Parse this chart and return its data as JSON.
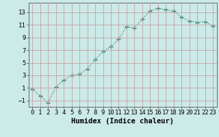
{
  "x": [
    0,
    1,
    2,
    3,
    4,
    5,
    6,
    7,
    8,
    9,
    10,
    11,
    12,
    13,
    14,
    15,
    16,
    17,
    18,
    19,
    20,
    21,
    22,
    23
  ],
  "y": [
    0.8,
    -0.3,
    -1.3,
    1.2,
    2.2,
    3.0,
    3.2,
    4.0,
    5.5,
    6.8,
    7.5,
    8.7,
    10.7,
    10.5,
    11.9,
    13.2,
    13.6,
    13.4,
    13.2,
    12.2,
    11.6,
    11.4,
    11.5,
    10.8
  ],
  "line_color": "#2e7d6e",
  "marker": "+",
  "marker_size": 4,
  "bg_color": "#cceae7",
  "grid_color": "#c4a0a0",
  "xlabel": "Humidex (Indice chaleur)",
  "ylim": [
    -2,
    14.5
  ],
  "xlim": [
    -0.5,
    23.5
  ],
  "yticks": [
    -1,
    1,
    3,
    5,
    7,
    9,
    11,
    13
  ],
  "xticks": [
    0,
    1,
    2,
    3,
    4,
    5,
    6,
    7,
    8,
    9,
    10,
    11,
    12,
    13,
    14,
    15,
    16,
    17,
    18,
    19,
    20,
    21,
    22,
    23
  ],
  "tick_labelsize": 6.5,
  "xlabel_fontsize": 7.5,
  "line_width": 0.9,
  "linestyle": ":"
}
